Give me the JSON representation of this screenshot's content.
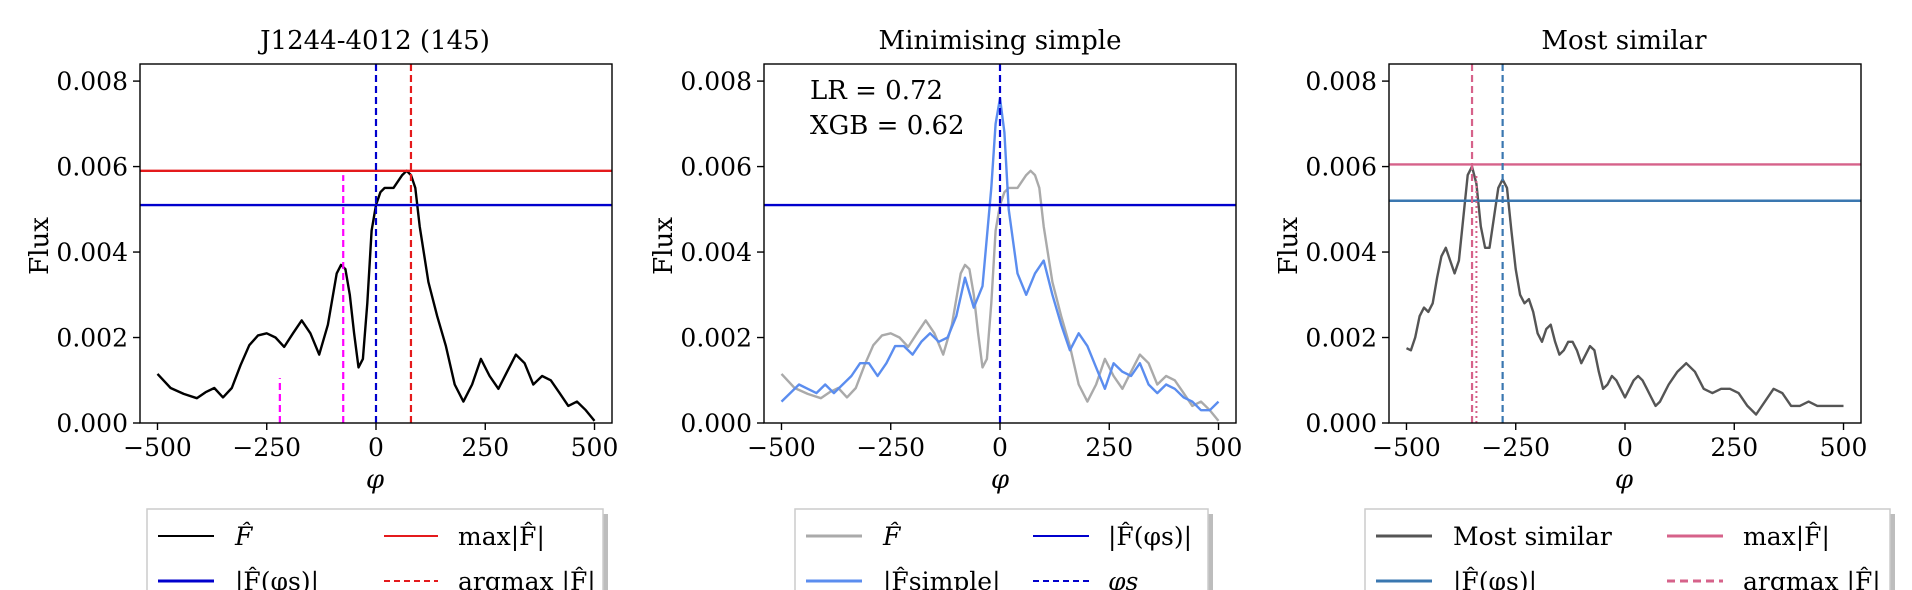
{
  "chart_data": [
    {
      "type": "line",
      "title": "J1244-4012 (145)",
      "xlabel": "φ",
      "ylabel": "Flux",
      "xlim": [
        -540,
        540
      ],
      "ylim": [
        0,
        0.0084
      ],
      "xticks": [
        -500,
        -250,
        0,
        250,
        500
      ],
      "xtick_labels": [
        "−500",
        "−250",
        "0",
        "250",
        "500"
      ],
      "yticks": [
        0,
        0.002,
        0.004,
        0.006,
        0.008
      ],
      "ytick_labels": [
        "0.000",
        "0.002",
        "0.004",
        "0.006",
        "0.008"
      ],
      "series": [
        {
          "name": "F̂",
          "color": "#000000",
          "x": [
            -500,
            -470,
            -440,
            -410,
            -390,
            -370,
            -350,
            -330,
            -310,
            -290,
            -270,
            -250,
            -230,
            -210,
            -190,
            -170,
            -150,
            -130,
            -110,
            -90,
            -80,
            -70,
            -60,
            -50,
            -40,
            -30,
            -20,
            -10,
            0,
            10,
            20,
            40,
            60,
            70,
            80,
            90,
            100,
            120,
            140,
            160,
            180,
            200,
            220,
            240,
            260,
            280,
            300,
            320,
            340,
            360,
            380,
            400,
            420,
            440,
            460,
            480,
            500
          ],
          "y": [
            0.00115,
            0.00082,
            0.00068,
            0.00058,
            0.00072,
            0.00082,
            0.0006,
            0.00082,
            0.00135,
            0.00182,
            0.00205,
            0.0021,
            0.002,
            0.00178,
            0.0021,
            0.0024,
            0.0021,
            0.0016,
            0.0023,
            0.0035,
            0.0037,
            0.0036,
            0.003,
            0.0021,
            0.0013,
            0.0015,
            0.0028,
            0.0045,
            0.0051,
            0.0054,
            0.0055,
            0.0055,
            0.0058,
            0.0059,
            0.0058,
            0.0055,
            0.0046,
            0.0033,
            0.0025,
            0.0018,
            0.0009,
            0.0005,
            0.0009,
            0.0015,
            0.0011,
            0.0008,
            0.0012,
            0.0016,
            0.0014,
            0.0009,
            0.0011,
            0.001,
            0.0007,
            0.0004,
            0.0005,
            0.0003,
            5e-05
          ]
        }
      ],
      "hlines": [
        {
          "name": "max|F̂|",
          "y": 0.0059,
          "color": "#e41a1c"
        },
        {
          "name": "|F̂(φs)|",
          "y": 0.0051,
          "color": "#0000cd"
        }
      ],
      "vlines": [
        {
          "x": 0,
          "color": "#0000cd",
          "style": "dashed",
          "ymax": 0.0084
        },
        {
          "x": 80,
          "color": "#e41a1c",
          "style": "dashed",
          "ymax": 0.0084
        },
        {
          "x": -75,
          "color": "#ff00ff",
          "style": "dashed",
          "ymax": 0.0058
        },
        {
          "x": -220,
          "color": "#ff00ff",
          "style": "dashed",
          "ymax": 0.00105
        }
      ],
      "legend": {
        "placement": "below",
        "items": [
          {
            "label": "F̂",
            "color": "#000000",
            "style": "solid"
          },
          {
            "label": "max|F̂|",
            "color": "#e41a1c",
            "style": "solid"
          },
          {
            "label": "|F̂(φs)|",
            "color": "#0000cd",
            "style": "solid"
          },
          {
            "label": "argmax |F̂|",
            "color": "#e41a1c",
            "style": "dashed"
          }
        ]
      }
    },
    {
      "type": "line",
      "title": "Minimising simple",
      "xlabel": "φ",
      "ylabel": "Flux",
      "xlim": [
        -540,
        540
      ],
      "ylim": [
        0,
        0.0084
      ],
      "xticks": [
        -500,
        -250,
        0,
        250,
        500
      ],
      "xtick_labels": [
        "−500",
        "−250",
        "0",
        "250",
        "500"
      ],
      "yticks": [
        0,
        0.002,
        0.004,
        0.006,
        0.008
      ],
      "ytick_labels": [
        "0.000",
        "0.002",
        "0.004",
        "0.006",
        "0.008"
      ],
      "annotations": [
        "LR = 0.72",
        "XGB = 0.62"
      ],
      "series": [
        {
          "name": "F̂",
          "color": "#aaaaaa",
          "x": [
            -500,
            -470,
            -440,
            -410,
            -390,
            -370,
            -350,
            -330,
            -310,
            -290,
            -270,
            -250,
            -230,
            -210,
            -190,
            -170,
            -150,
            -130,
            -110,
            -90,
            -80,
            -70,
            -60,
            -50,
            -40,
            -30,
            -20,
            -10,
            0,
            10,
            20,
            40,
            60,
            70,
            80,
            90,
            100,
            120,
            140,
            160,
            180,
            200,
            220,
            240,
            260,
            280,
            300,
            320,
            340,
            360,
            380,
            400,
            420,
            440,
            460,
            480,
            500
          ],
          "y": [
            0.00115,
            0.00082,
            0.00068,
            0.00058,
            0.00072,
            0.00082,
            0.0006,
            0.00082,
            0.00135,
            0.00182,
            0.00205,
            0.0021,
            0.002,
            0.00178,
            0.0021,
            0.0024,
            0.0021,
            0.0016,
            0.0023,
            0.0035,
            0.0037,
            0.0036,
            0.003,
            0.0021,
            0.0013,
            0.0015,
            0.0028,
            0.0045,
            0.0051,
            0.0054,
            0.0055,
            0.0055,
            0.0058,
            0.0059,
            0.0058,
            0.0055,
            0.0046,
            0.0033,
            0.0025,
            0.0018,
            0.0009,
            0.0005,
            0.0009,
            0.0015,
            0.0011,
            0.0008,
            0.0012,
            0.0016,
            0.0014,
            0.0009,
            0.0011,
            0.001,
            0.0007,
            0.0004,
            0.0005,
            0.0003,
            5e-05
          ]
        },
        {
          "name": "|F̂simple|",
          "color": "#5b8def",
          "x": [
            -500,
            -480,
            -460,
            -440,
            -420,
            -400,
            -380,
            -360,
            -340,
            -320,
            -300,
            -280,
            -260,
            -240,
            -220,
            -200,
            -180,
            -160,
            -140,
            -120,
            -100,
            -80,
            -60,
            -40,
            -20,
            -10,
            0,
            10,
            20,
            40,
            60,
            80,
            100,
            120,
            140,
            160,
            180,
            200,
            220,
            240,
            260,
            280,
            300,
            320,
            340,
            360,
            380,
            400,
            420,
            440,
            460,
            480,
            500
          ],
          "y": [
            0.0005,
            0.0007,
            0.0009,
            0.0008,
            0.0007,
            0.0009,
            0.0007,
            0.0009,
            0.0011,
            0.0014,
            0.0014,
            0.0011,
            0.0014,
            0.0018,
            0.0018,
            0.0016,
            0.0019,
            0.0021,
            0.0019,
            0.002,
            0.0025,
            0.0034,
            0.0027,
            0.0032,
            0.0055,
            0.007,
            0.0076,
            0.0068,
            0.005,
            0.0035,
            0.003,
            0.0035,
            0.0038,
            0.003,
            0.0023,
            0.0017,
            0.0021,
            0.0018,
            0.0013,
            0.0008,
            0.0014,
            0.0012,
            0.0011,
            0.0014,
            0.0009,
            0.0007,
            0.0009,
            0.0008,
            0.0006,
            0.0005,
            0.0003,
            0.0003,
            0.0005
          ]
        }
      ],
      "hlines": [
        {
          "name": "|F̂(φs)|",
          "y": 0.0051,
          "color": "#0000cd"
        }
      ],
      "vlines": [
        {
          "x": 0,
          "color": "#0000cd",
          "style": "dashed",
          "ymax": 0.0084
        }
      ],
      "legend": {
        "placement": "below",
        "items": [
          {
            "label": "F̂",
            "color": "#aaaaaa",
            "style": "solid"
          },
          {
            "label": "|F̂(φs)|",
            "color": "#0000cd",
            "style": "solid"
          },
          {
            "label": "|F̂simple|",
            "color": "#5b8def",
            "style": "solid"
          },
          {
            "label": "φs",
            "color": "#0000cd",
            "style": "dashed"
          }
        ]
      }
    },
    {
      "type": "line",
      "title": "Most similar",
      "xlabel": "φ",
      "ylabel": "Flux",
      "xlim": [
        -540,
        540
      ],
      "ylim": [
        0,
        0.0084
      ],
      "xticks": [
        -500,
        -250,
        0,
        250,
        500
      ],
      "xtick_labels": [
        "−500",
        "−250",
        "0",
        "250",
        "500"
      ],
      "yticks": [
        0,
        0.002,
        0.004,
        0.006,
        0.008
      ],
      "ytick_labels": [
        "0.000",
        "0.002",
        "0.004",
        "0.006",
        "0.008"
      ],
      "series": [
        {
          "name": "Most similar",
          "color": "#555555",
          "x": [
            -500,
            -490,
            -480,
            -470,
            -460,
            -450,
            -440,
            -430,
            -420,
            -410,
            -400,
            -390,
            -380,
            -370,
            -360,
            -350,
            -340,
            -330,
            -320,
            -310,
            -300,
            -290,
            -280,
            -270,
            -260,
            -250,
            -240,
            -230,
            -220,
            -210,
            -200,
            -190,
            -180,
            -170,
            -160,
            -150,
            -140,
            -130,
            -120,
            -110,
            -100,
            -90,
            -80,
            -70,
            -60,
            -50,
            -40,
            -30,
            -20,
            -10,
            0,
            10,
            20,
            30,
            40,
            50,
            60,
            70,
            80,
            90,
            100,
            120,
            140,
            160,
            180,
            200,
            220,
            240,
            260,
            280,
            300,
            320,
            340,
            360,
            380,
            400,
            420,
            440,
            460,
            480,
            500
          ],
          "y": [
            0.00175,
            0.0017,
            0.002,
            0.0025,
            0.0027,
            0.0026,
            0.0028,
            0.0034,
            0.0039,
            0.0041,
            0.0038,
            0.0035,
            0.0038,
            0.0048,
            0.0058,
            0.006,
            0.0056,
            0.0046,
            0.0041,
            0.0041,
            0.0048,
            0.0055,
            0.0057,
            0.0055,
            0.0045,
            0.0036,
            0.003,
            0.0028,
            0.0029,
            0.0026,
            0.0021,
            0.0019,
            0.0022,
            0.0023,
            0.0019,
            0.0016,
            0.0017,
            0.0019,
            0.0019,
            0.0017,
            0.0014,
            0.0016,
            0.0018,
            0.0017,
            0.0012,
            0.0008,
            0.0009,
            0.0011,
            0.001,
            0.0008,
            0.0006,
            0.0008,
            0.001,
            0.0011,
            0.001,
            0.0008,
            0.0006,
            0.0004,
            0.0005,
            0.0007,
            0.0009,
            0.0012,
            0.0014,
            0.0012,
            0.0008,
            0.0007,
            0.0008,
            0.0008,
            0.0007,
            0.0004,
            0.0002,
            0.0005,
            0.0008,
            0.0007,
            0.0004,
            0.0004,
            0.0005,
            0.0004,
            0.0004,
            0.0004,
            0.0004
          ]
        }
      ],
      "hlines": [
        {
          "name": "max|F̂|",
          "y": 0.00605,
          "color": "#d6628a"
        },
        {
          "name": "|F̂(φs)|",
          "y": 0.0052,
          "color": "#3a77b0"
        }
      ],
      "vlines": [
        {
          "x": -350,
          "color": "#d6628a",
          "style": "dashed",
          "ymax": 0.0084
        },
        {
          "x": -340,
          "color": "#d6628a",
          "style": "dotted",
          "ymax": 0.0058
        },
        {
          "x": -280,
          "color": "#3a77b0",
          "style": "dashed",
          "ymax": 0.0084
        }
      ],
      "legend": {
        "placement": "below",
        "items": [
          {
            "label": "Most similar",
            "color": "#555555",
            "style": "solid"
          },
          {
            "label": "max|F̂|",
            "color": "#d6628a",
            "style": "solid"
          },
          {
            "label": "|F̂(φs)|",
            "color": "#3a77b0",
            "style": "solid"
          },
          {
            "label": "argmax |F̂|",
            "color": "#d6628a",
            "style": "dashed"
          }
        ]
      }
    }
  ]
}
